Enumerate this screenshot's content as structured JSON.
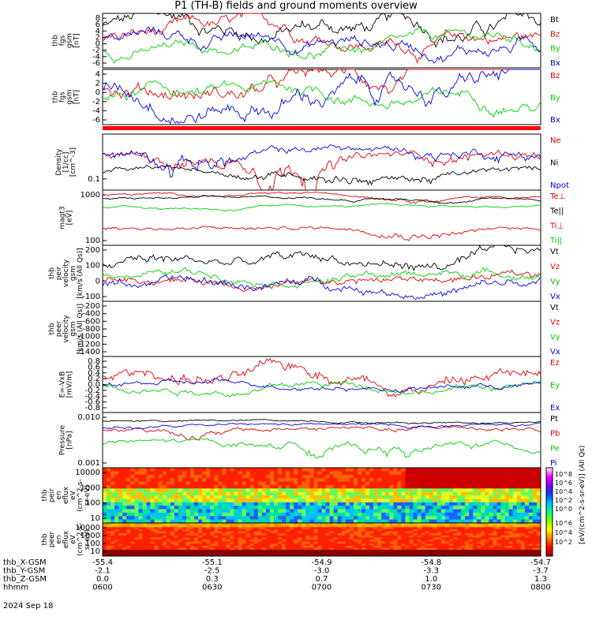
{
  "title": "P1 (TH-B) fields and ground moments overview",
  "colors": {
    "black": "#000000",
    "red": "#e00000",
    "green": "#00d000",
    "blue": "#0000e0"
  },
  "footer": {
    "rows": [
      {
        "label": "thb_X-GSM",
        "values": [
          "-55.4",
          "-55.1",
          "-54.9",
          "-54.8",
          "-54.7"
        ]
      },
      {
        "label": "thb_Y-GSM",
        "values": [
          "-2.1",
          "-2.5",
          "-3.0",
          "-3.3",
          "-3.7"
        ]
      },
      {
        "label": "thb_Z-GSM",
        "values": [
          "0.0",
          "0.3",
          "0.7",
          "1.0",
          "1.3"
        ]
      },
      {
        "label": "hhmm",
        "values": [
          "0600",
          "0630",
          "0700",
          "0730",
          "0800"
        ]
      }
    ],
    "date": "2024 Sep 18"
  },
  "colorbar": {
    "label": "[eV/(cm^2-s-sr-eV)] (All Qs)",
    "ticks_top": [
      "10^8",
      "10^6",
      "10^4",
      "10^2",
      "10^0"
    ],
    "ticks_bottom": [
      "10^6",
      "10^4",
      "10^2"
    ]
  },
  "chart_data": [
    {
      "type": "line",
      "id": "panel1",
      "ylabel": [
        "thb",
        "fgs",
        "gsm",
        "[nT]"
      ],
      "yticks": [
        "8",
        "6",
        "4",
        "2",
        "0",
        "-2",
        "-4",
        "-6"
      ],
      "ylim": [
        -6,
        8
      ],
      "series": [
        {
          "name": "Bt",
          "color": "black"
        },
        {
          "name": "Bz",
          "color": "red"
        },
        {
          "name": "By",
          "color": "green"
        },
        {
          "name": "Bx",
          "color": "blue"
        }
      ]
    },
    {
      "type": "line",
      "id": "panel2",
      "ylabel": [
        "thb",
        "fgs",
        "gsm",
        "[nT]"
      ],
      "yticks": [
        "4",
        "2",
        "0",
        "-2",
        "-4",
        "-6"
      ],
      "ylim": [
        -7,
        5
      ],
      "series": [
        {
          "name": "Bz",
          "color": "red"
        },
        {
          "name": "By",
          "color": "green"
        },
        {
          "name": "Bx",
          "color": "blue"
        }
      ]
    },
    {
      "type": "line",
      "id": "panel3",
      "ylabel": [
        "Density",
        "[1/cc]",
        "[cm^-3]"
      ],
      "yticks": [
        "0.1"
      ],
      "ylim": [
        0.05,
        1.0
      ],
      "log": true,
      "series": [
        {
          "name": "Ne",
          "color": "red"
        },
        {
          "name": "Ni",
          "color": "black"
        },
        {
          "name": "Npot",
          "color": "blue"
        }
      ]
    },
    {
      "type": "line",
      "id": "panel4",
      "ylabel": [
        "magt3",
        "[eV]"
      ],
      "yticks": [
        "1000",
        "100"
      ],
      "ylim": [
        40,
        3000
      ],
      "log": true,
      "series": [
        {
          "name": "Te⊥",
          "color": "red"
        },
        {
          "name": "Te||",
          "color": "black"
        },
        {
          "name": "Ti⊥",
          "color": "red"
        },
        {
          "name": "Ti||",
          "color": "green"
        }
      ]
    },
    {
      "type": "line",
      "id": "panel5",
      "ylabel": [
        "thb",
        "peir",
        "velocity",
        "gsm",
        "[km/s (All Qs)]"
      ],
      "yticks": [
        "200",
        "100",
        "0",
        "-100"
      ],
      "ylim": [
        -180,
        220
      ],
      "series": [
        {
          "name": "Vt",
          "color": "black"
        },
        {
          "name": "Vz",
          "color": "red"
        },
        {
          "name": "Vy",
          "color": "green"
        },
        {
          "name": "Vx",
          "color": "blue"
        }
      ]
    },
    {
      "type": "line",
      "id": "panel6",
      "ylabel": [
        "thb",
        "peer",
        "velocity",
        "gsm",
        "[km/s (All Qs)]"
      ],
      "yticks": [
        "-200",
        "-400",
        "-600",
        "-800",
        "-1000",
        "-1200",
        "-1400"
      ],
      "ylim": [
        -1480,
        0
      ],
      "series": [
        {
          "name": "Vt",
          "color": "black"
        },
        {
          "name": "Vz",
          "color": "red"
        },
        {
          "name": "Vy",
          "color": "green"
        },
        {
          "name": "Vx",
          "color": "blue"
        }
      ]
    },
    {
      "type": "line",
      "id": "panel7",
      "ylabel": [
        "E=-VxB",
        "[mV/m]"
      ],
      "yticks": [
        "0.8",
        "0.6",
        "0.4",
        "0.2",
        "0.0",
        "-0.2",
        "-0.4",
        "-0.6",
        "-0.8"
      ],
      "ylim": [
        -0.9,
        0.9
      ],
      "series": [
        {
          "name": "Ez",
          "color": "red"
        },
        {
          "name": "Ey",
          "color": "green"
        },
        {
          "name": "Ex",
          "color": "blue"
        }
      ]
    },
    {
      "type": "line",
      "id": "panel8",
      "ylabel": [
        "Pressure",
        "[nPa]"
      ],
      "yticks": [
        "0.010",
        "0.001"
      ],
      "ylim": [
        0.0005,
        0.05
      ],
      "log": true,
      "series": [
        {
          "name": "Pt",
          "color": "black"
        },
        {
          "name": "Pb",
          "color": "red"
        },
        {
          "name": "Pe",
          "color": "green"
        },
        {
          "name": "Pi",
          "color": "blue"
        }
      ]
    },
    {
      "type": "heatmap",
      "id": "panel9",
      "ylabel": [
        "thb",
        "peir",
        "en",
        "eflux",
        "eV",
        "(cm^2-s-",
        "sr-eV)"
      ],
      "yticks": [
        "10000",
        "1000",
        "100",
        "10"
      ],
      "log": true
    },
    {
      "type": "heatmap",
      "id": "panel10",
      "ylabel": [
        "thb",
        "peer",
        "en",
        "eflux",
        "eV",
        "(cm^2-s-",
        "sr-eV)"
      ],
      "yticks": [
        "10000",
        "1000",
        "100",
        "10"
      ],
      "log": true
    }
  ]
}
